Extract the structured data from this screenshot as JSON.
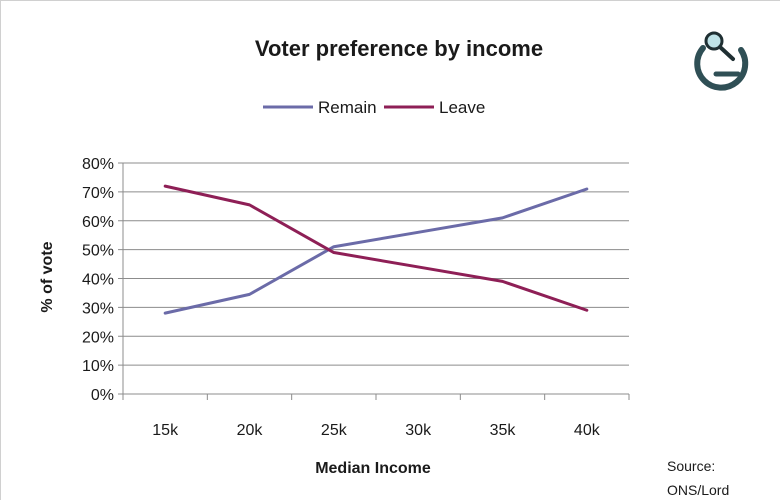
{
  "chart_data": {
    "type": "line",
    "title": "Voter preference by income",
    "xlabel": "Median Income",
    "ylabel": "% of vote",
    "categories": [
      "15k",
      "20k",
      "25k",
      "30k",
      "35k",
      "40k"
    ],
    "series": [
      {
        "name": "Remain",
        "values": [
          28,
          34.5,
          51,
          56,
          61,
          71
        ],
        "color": "#6b6ba8"
      },
      {
        "name": "Leave",
        "values": [
          72,
          65.5,
          49,
          44,
          39,
          29
        ],
        "color": "#8e1f56"
      }
    ],
    "ylim": [
      0,
      80
    ],
    "yticks": [
      "0%",
      "10%",
      "20%",
      "30%",
      "40%",
      "50%",
      "60%",
      "70%",
      "80%"
    ],
    "grid": true,
    "legend_position": "top-center"
  },
  "source": {
    "line1": "Source:",
    "line2": "ONS/Lord"
  },
  "logo": {
    "icon": "magnifier-g-logo-icon"
  }
}
